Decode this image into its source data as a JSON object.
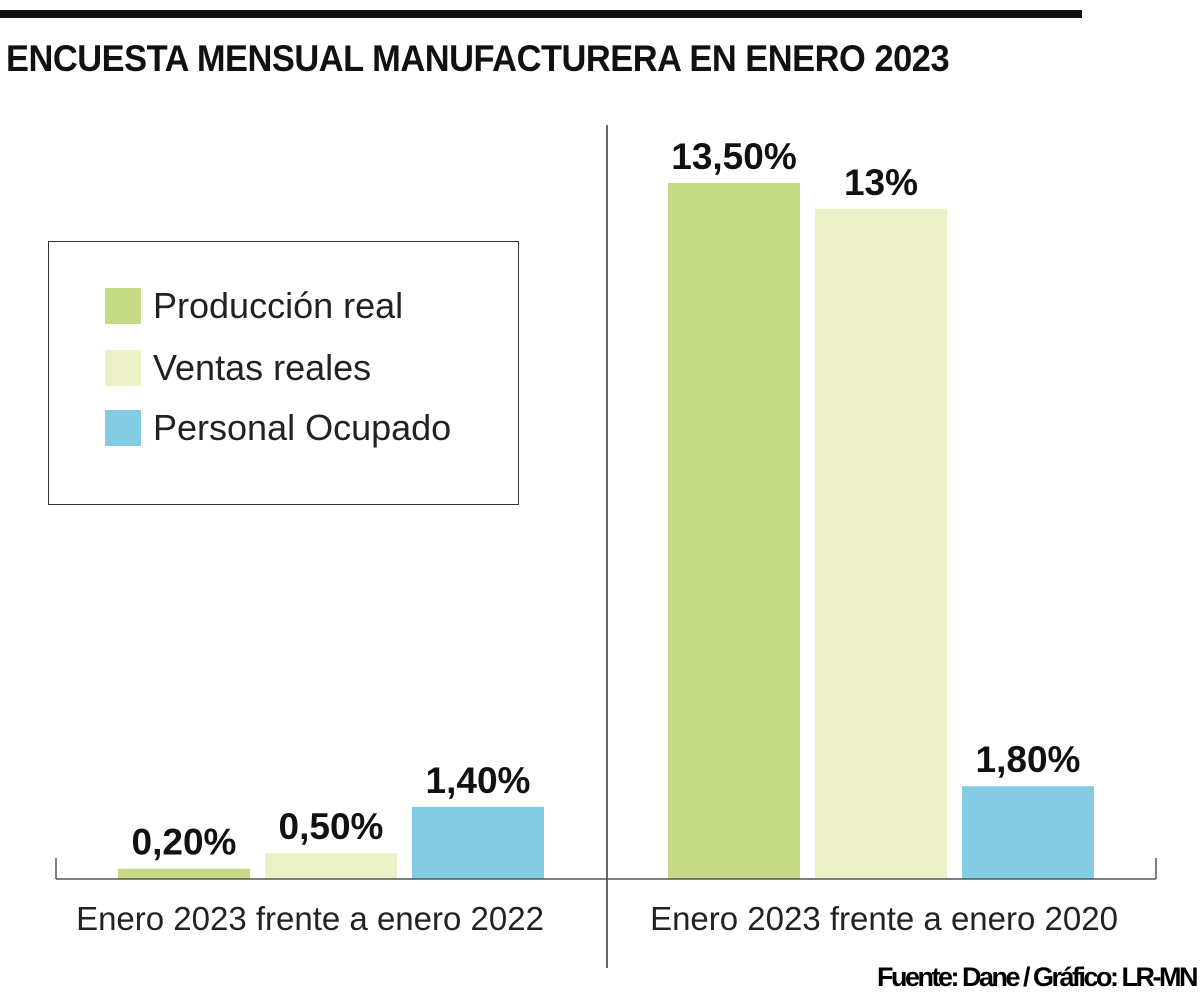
{
  "chart_data": {
    "type": "bar",
    "title": "ENCUESTA MENSUAL MANUFACTURERA EN ENERO 2023",
    "categories": [
      "Enero 2023 frente a enero 2022",
      "Enero 2023 frente a enero 2020"
    ],
    "series": [
      {
        "name": "Producción real",
        "color": "#c6d985",
        "values": [
          0.2,
          13.5
        ],
        "labels": [
          "0,20%",
          "13,50%"
        ]
      },
      {
        "name": "Ventas reales",
        "color": "#ebf0c6",
        "values": [
          0.5,
          13.0
        ],
        "labels": [
          "0,50%",
          "13%"
        ]
      },
      {
        "name": "Personal Ocupado",
        "color": "#84cce4",
        "values": [
          1.4,
          1.8
        ],
        "labels": [
          "1,40%",
          "1,80%"
        ]
      }
    ],
    "xlabel": "",
    "ylabel": "",
    "ylim": [
      0,
      13.5
    ],
    "grid": false,
    "legend_position": "top-left"
  },
  "source": "Fuente: Dane / Gráfico: LR-MN"
}
